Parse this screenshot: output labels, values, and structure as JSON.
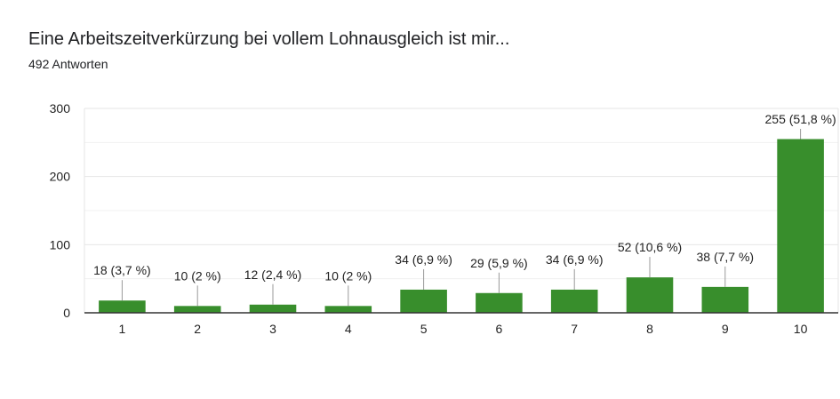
{
  "header": {
    "title": "Eine Arbeitszeitverkürzung bei vollem Lohnausgleich ist mir...",
    "subtitle": "492 Antworten"
  },
  "colors": {
    "bar": "#388e2c",
    "grid": "#e6e6e6",
    "axis": "#333333",
    "leader": "#999999"
  },
  "chart_data": {
    "type": "bar",
    "categories": [
      "1",
      "2",
      "3",
      "4",
      "5",
      "6",
      "7",
      "8",
      "9",
      "10"
    ],
    "values": [
      18,
      10,
      12,
      10,
      34,
      29,
      34,
      52,
      38,
      255
    ],
    "data_labels": [
      "18 (3,7 %)",
      "10 (2 %)",
      "12 (2,4 %)",
      "10 (2 %)",
      "34 (6,9 %)",
      "29 (5,9 %)",
      "34 (6,9 %)",
      "52 (10,6 %)",
      "38 (7,7 %)",
      "255 (51,8 %)"
    ],
    "y_ticks": [
      "0",
      "100",
      "200",
      "300"
    ],
    "ylim": [
      0,
      300
    ],
    "grid": true,
    "legend": false,
    "xlabel": "",
    "ylabel": ""
  }
}
